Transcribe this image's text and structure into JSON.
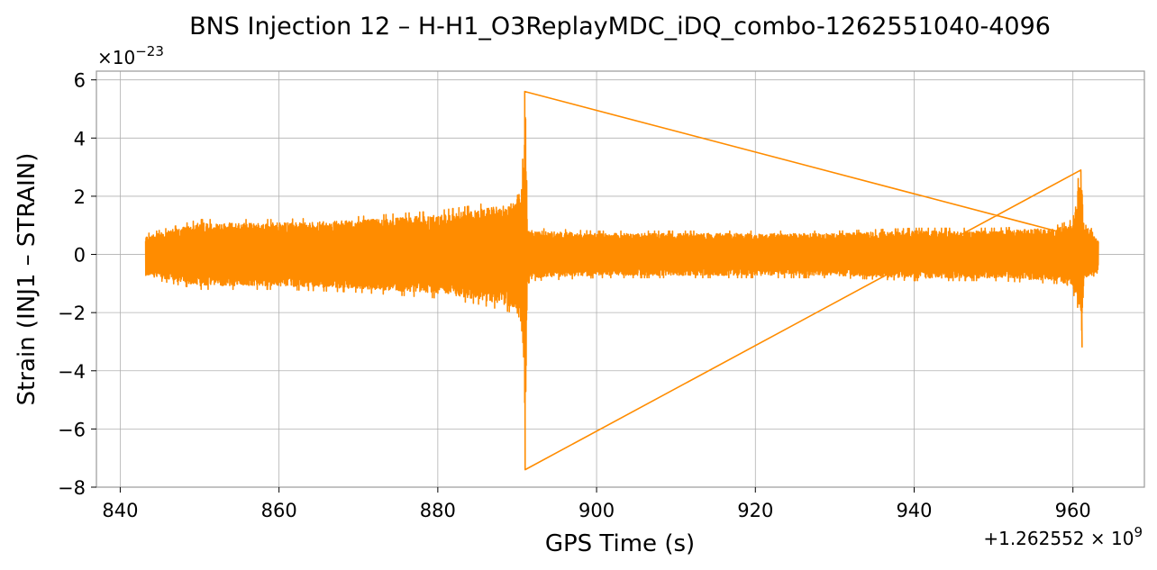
{
  "chart_data": {
    "type": "line",
    "title": "BNS Injection 12 – H-H1_O3ReplayMDC_iDQ_combo-1262551040-4096",
    "xlabel": "GPS Time (s)",
    "ylabel": "Strain (INJ1 – STRAIN)",
    "x_offset_label": "+1.262552 × 10",
    "x_offset_exponent": "9",
    "y_scale_label": "×10",
    "y_scale_exponent": "−23",
    "xlim": [
      837,
      969
    ],
    "ylim": [
      -8,
      6.3
    ],
    "x_ticks": [
      840,
      860,
      880,
      900,
      920,
      940,
      960
    ],
    "x_tick_labels": [
      "840",
      "860",
      "880",
      "900",
      "920",
      "940",
      "960"
    ],
    "y_ticks": [
      -8,
      -6,
      -4,
      -2,
      0,
      2,
      4,
      6
    ],
    "y_tick_labels": [
      "−8",
      "−6",
      "−4",
      "−2",
      "0",
      "2",
      "4",
      "6"
    ],
    "grid": true,
    "color": "#ff8c00",
    "series": [
      {
        "x": [
          843.2,
          850,
          860,
          870,
          880,
          885,
          888,
          889.5,
          890.5,
          890.9,
          891.0,
          891.3,
          892,
          900,
          910,
          920,
          930,
          940,
          950,
          958,
          960,
          960.8,
          961.1,
          961.4,
          962,
          963.2
        ],
        "envelope_upper": [
          0.7,
          1.2,
          1.2,
          1.3,
          1.5,
          1.7,
          1.9,
          2.0,
          2.6,
          4.0,
          5.6,
          1.0,
          0.9,
          0.8,
          0.8,
          0.8,
          0.8,
          0.9,
          0.9,
          1.0,
          1.2,
          2.9,
          2.8,
          1.0,
          1.0,
          0.6
        ],
        "envelope_lower": [
          -0.8,
          -1.2,
          -1.2,
          -1.3,
          -1.5,
          -1.7,
          -1.9,
          -2.0,
          -2.6,
          -4.5,
          -7.4,
          -1.0,
          -0.9,
          -0.8,
          -0.8,
          -0.8,
          -0.8,
          -0.9,
          -0.9,
          -1.0,
          -1.3,
          -2.0,
          -3.2,
          -1.0,
          -0.9,
          -0.6
        ]
      }
    ]
  }
}
